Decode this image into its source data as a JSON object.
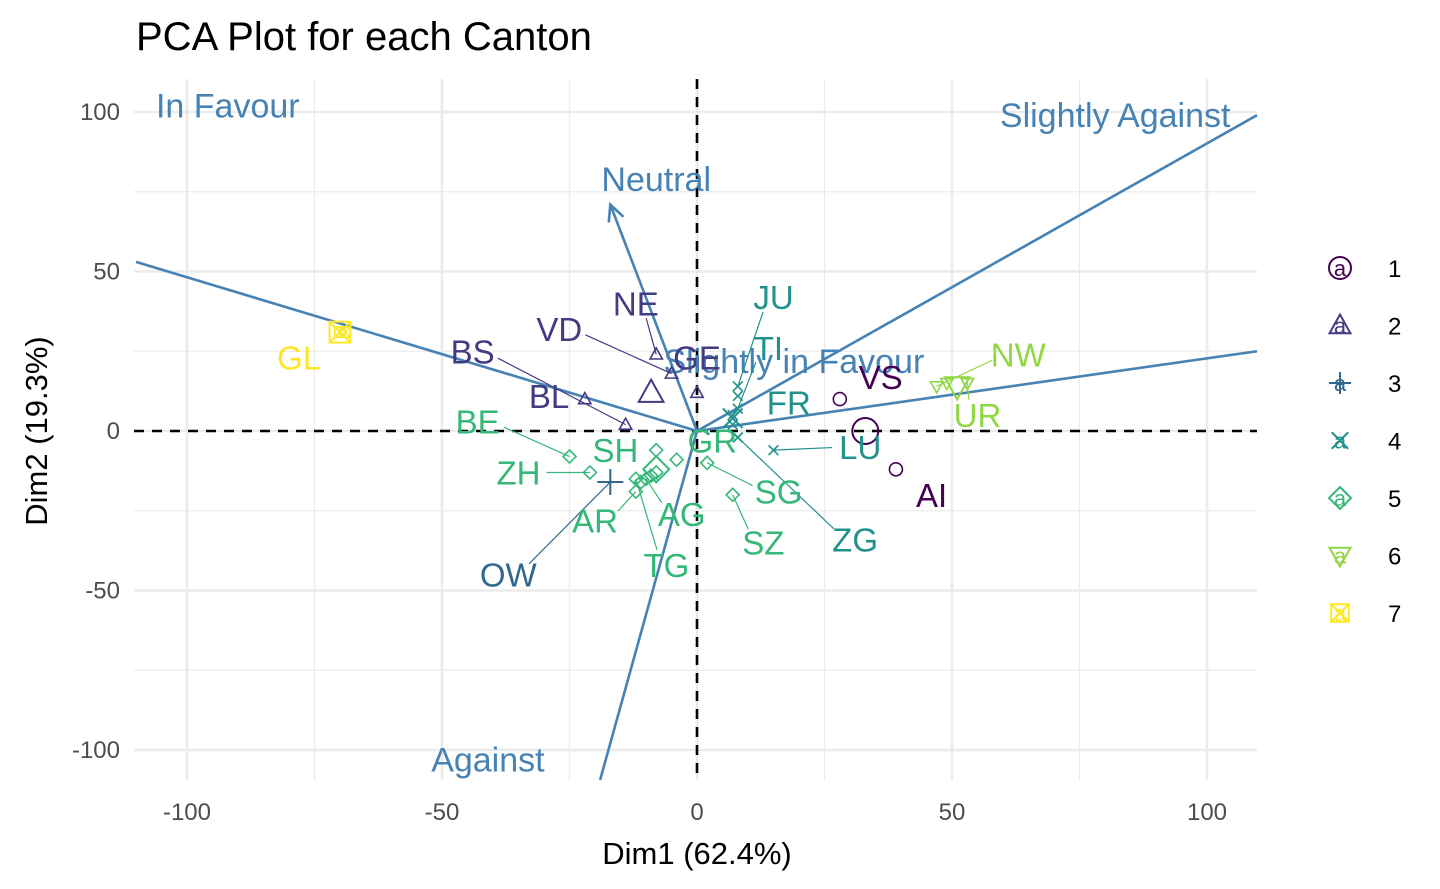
{
  "chart_data": {
    "type": "scatter",
    "title": "PCA Plot for each Canton",
    "xlabel": "Dim1 (62.4%)",
    "ylabel": "Dim2 (19.3%)",
    "xlim": [
      -110,
      110
    ],
    "ylim": [
      -110,
      110
    ],
    "x_ticks": [
      -100,
      -50,
      0,
      50,
      100
    ],
    "y_ticks": [
      100,
      50,
      0,
      -50,
      -100
    ],
    "x_tick_labels": [
      "-100",
      "-50",
      "0",
      "50",
      "100"
    ],
    "y_tick_labels": [
      "100",
      "50",
      "0",
      "-50",
      "-100"
    ],
    "grid": true,
    "zero_lines": "dashed",
    "legend_position": "right",
    "variables": [
      {
        "name": "In Favour",
        "x": -110,
        "y": 53,
        "label_x": -92,
        "label_y": 102,
        "arrow": false
      },
      {
        "name": "Slightly Against",
        "x": 110,
        "y": 99,
        "label_x": 82,
        "label_y": 99,
        "arrow": false
      },
      {
        "name": "Neutral",
        "x": -17,
        "y": 71,
        "label_x": -8,
        "label_y": 79,
        "arrow": true
      },
      {
        "name": "Slightly in Favour",
        "x": 110,
        "y": 25,
        "label_x": 19,
        "label_y": 22,
        "arrow": false
      },
      {
        "name": "Against",
        "x": -19,
        "y": -110,
        "label_x": -41,
        "label_y": -103,
        "arrow": false
      }
    ],
    "clusters": [
      {
        "name": "1",
        "color": "#440154",
        "shape": "circle"
      },
      {
        "name": "2",
        "color": "#443983",
        "shape": "triangle-up"
      },
      {
        "name": "3",
        "color": "#31688e",
        "shape": "plus"
      },
      {
        "name": "4",
        "color": "#21918c",
        "shape": "cross"
      },
      {
        "name": "5",
        "color": "#35b779",
        "shape": "diamond"
      },
      {
        "name": "6",
        "color": "#90d743",
        "shape": "triangle-down"
      },
      {
        "name": "7",
        "color": "#fde725",
        "shape": "square-x"
      }
    ],
    "centroids": [
      {
        "cluster": "1",
        "x": 33,
        "y": 0
      },
      {
        "cluster": "2",
        "x": -9,
        "y": 12
      },
      {
        "cluster": "3",
        "x": -17,
        "y": -16
      },
      {
        "cluster": "4",
        "x": 7,
        "y": 4
      },
      {
        "cluster": "5",
        "x": -8,
        "y": -12
      },
      {
        "cluster": "6",
        "x": 51,
        "y": 14
      },
      {
        "cluster": "7",
        "x": -70,
        "y": 31
      }
    ],
    "points": [
      {
        "label": "VS",
        "cluster": "1",
        "x": 28,
        "y": 10,
        "label_x": 36,
        "label_y": 17,
        "leader": false
      },
      {
        "label": "AI",
        "cluster": "1",
        "x": 39,
        "y": -12,
        "label_x": 46,
        "label_y": -20,
        "leader": false
      },
      {
        "label": "NE",
        "cluster": "2",
        "x": -8,
        "y": 24,
        "label_x": -12,
        "label_y": 40,
        "leader": true
      },
      {
        "label": "VD",
        "cluster": "2",
        "x": -5,
        "y": 18,
        "label_x": -27,
        "label_y": 32,
        "leader": true
      },
      {
        "label": "BS",
        "cluster": "2",
        "x": -14,
        "y": 2,
        "label_x": -44,
        "label_y": 25,
        "leader": true
      },
      {
        "label": "BL",
        "cluster": "2",
        "x": -22,
        "y": 10,
        "label_x": -29,
        "label_y": 11,
        "leader": false
      },
      {
        "label": "GE",
        "cluster": "2",
        "x": 0,
        "y": 12,
        "label_x": 0,
        "label_y": 23,
        "leader": false
      },
      {
        "label": "OW",
        "cluster": "3",
        "x": -17,
        "y": -16,
        "label_x": -37,
        "label_y": -45,
        "leader": true
      },
      {
        "label": "JU",
        "cluster": "4",
        "x": 8,
        "y": 14,
        "label_x": 15,
        "label_y": 42,
        "leader": true
      },
      {
        "label": "TI",
        "cluster": "4",
        "x": 8,
        "y": 7,
        "label_x": 14,
        "label_y": 26,
        "leader": true
      },
      {
        "label": "FR",
        "cluster": "4",
        "x": 7,
        "y": 5,
        "label_x": 18,
        "label_y": 9,
        "leader": false
      },
      {
        "label": "LU",
        "cluster": "4",
        "x": 15,
        "y": -6,
        "label_x": 32,
        "label_y": -5,
        "leader": true
      },
      {
        "label": "ZG",
        "cluster": "4",
        "x": 8,
        "y": -2,
        "label_x": 31,
        "label_y": -34,
        "leader": true
      },
      {
        "label": "BE",
        "cluster": "5",
        "x": -25,
        "y": -8,
        "label_x": -43,
        "label_y": 3,
        "leader": true
      },
      {
        "label": "ZH",
        "cluster": "5",
        "x": -21,
        "y": -13,
        "label_x": -35,
        "label_y": -13,
        "leader": true
      },
      {
        "label": "SH",
        "cluster": "5",
        "x": -8,
        "y": -6,
        "label_x": -16,
        "label_y": -6,
        "leader": false
      },
      {
        "label": "AR",
        "cluster": "5",
        "x": -12,
        "y": -19,
        "label_x": -20,
        "label_y": -28,
        "leader": true
      },
      {
        "label": "AG",
        "cluster": "5",
        "x": -10,
        "y": -15,
        "label_x": -3,
        "label_y": -26,
        "leader": true
      },
      {
        "label": "GR",
        "cluster": "5",
        "x": -4,
        "y": -9,
        "label_x": 3,
        "label_y": -3,
        "leader": false
      },
      {
        "label": "SG",
        "cluster": "5",
        "x": 2,
        "y": -10,
        "label_x": 16,
        "label_y": -19,
        "leader": true
      },
      {
        "label": "SZ",
        "cluster": "5",
        "x": 7,
        "y": -20,
        "label_x": 13,
        "label_y": -35,
        "leader": true
      },
      {
        "label": "TG",
        "cluster": "5",
        "x": -12,
        "y": -15,
        "label_x": -6,
        "label_y": -42,
        "leader": true
      },
      {
        "label": "NW",
        "cluster": "6",
        "x": 47,
        "y": 14,
        "label_x": 63,
        "label_y": 24,
        "leader": true
      },
      {
        "label": "UR",
        "cluster": "6",
        "x": 53,
        "y": 15,
        "label_x": 55,
        "label_y": 5,
        "leader": true
      },
      {
        "label": "GL",
        "cluster": "7",
        "x": -70,
        "y": 31,
        "label_x": -78,
        "label_y": 23,
        "leader": false
      }
    ],
    "cluster_member_markers": [
      {
        "cluster": "4",
        "x": 8,
        "y": 11
      },
      {
        "cluster": "4",
        "x": 7,
        "y": 2
      },
      {
        "cluster": "4",
        "x": 8,
        "y": -2
      },
      {
        "cluster": "5",
        "x": -9,
        "y": -14
      },
      {
        "cluster": "5",
        "x": -11,
        "y": -16
      },
      {
        "cluster": "5",
        "x": -8,
        "y": -13
      },
      {
        "cluster": "6",
        "x": 53,
        "y": 15
      },
      {
        "cluster": "6",
        "x": 49,
        "y": 15
      },
      {
        "cluster": "7",
        "x": -69,
        "y": 31
      }
    ]
  }
}
